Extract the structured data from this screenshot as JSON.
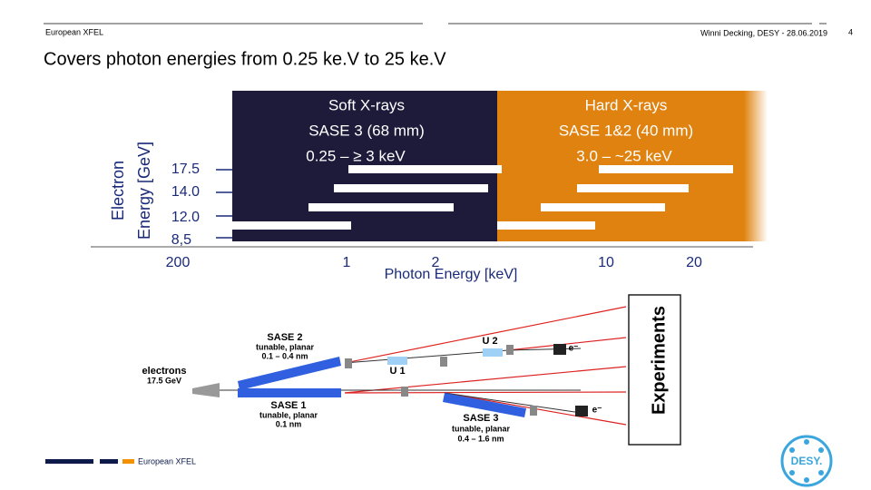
{
  "header": {
    "left": "European XFEL",
    "right": "Winni Decking, DESY -  28.06.2019",
    "page": "4"
  },
  "title": "Covers photon energies from 0.25 ke.V to 25 ke.V",
  "energy_figure": {
    "soft": [
      "Soft X-rays",
      "SASE 3 (68 mm)",
      "0.25  –  ≥ 3 keV"
    ],
    "hard": [
      "Hard X-rays",
      "SASE 1&2 (40 mm)",
      "3.0  –  ~25 keV"
    ],
    "y_axis_label": [
      "Electron",
      "Energy [GeV]"
    ],
    "y_labels": [
      "17.5",
      "14.0",
      "12.0",
      "8,5"
    ],
    "x_labels": [
      "200",
      "1",
      "2",
      "10",
      "20"
    ],
    "x_axis_label": "Photon Energy [keV]"
  },
  "layout_figure": {
    "sase2": [
      "SASE 2",
      "tunable, planar",
      "0.1 – 0.4 nm"
    ],
    "electrons": [
      "electrons",
      "17.5 GeV"
    ],
    "sase1": [
      "SASE 1",
      "tunable, planar",
      "0.1 nm"
    ],
    "sase3": [
      "SASE 3",
      "tunable, planar",
      "0.4 – 1.6 nm"
    ],
    "u2": "U 2",
    "u1": "U 1",
    "e_top": "e⁻",
    "e_bottom": "e⁻",
    "experiments": "Experiments"
  },
  "footer": {
    "logo_text": "European XFEL",
    "desy": "DESY."
  }
}
